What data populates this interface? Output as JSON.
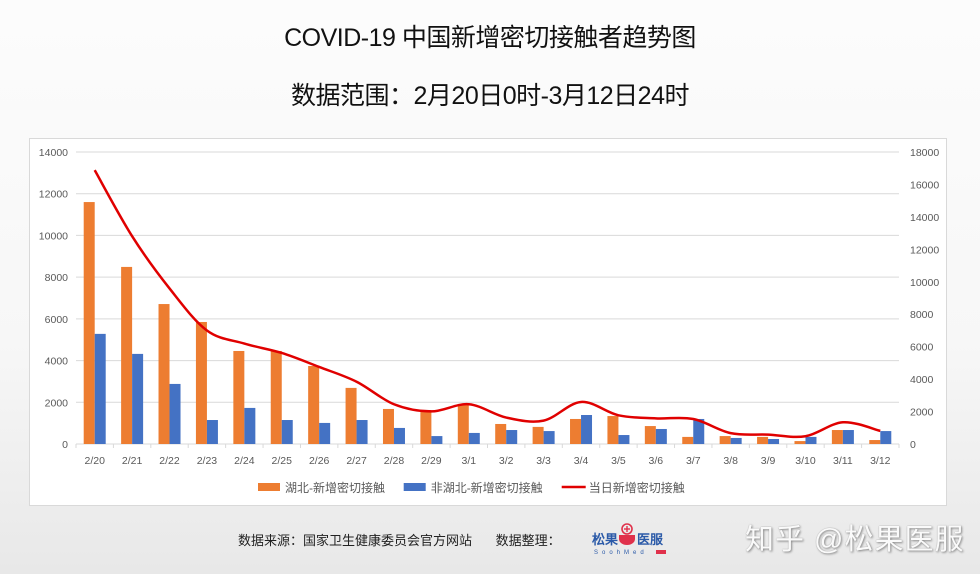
{
  "header": {
    "title": "COVID-19 中国新增密切接触者趋势图",
    "subtitle": "数据范围：2月20日0时-3月12日24时"
  },
  "footer": {
    "source": "数据来源：国家卫生健康委员会官方网站",
    "compiled_by": "数据整理：",
    "logo_text": "松果医服",
    "logo_subtext": "SoohMed",
    "watermark": "知乎 @松果医服"
  },
  "colors": {
    "hubei": "#ED7D31",
    "non_hubei": "#4472C4",
    "total": "#E00000",
    "grid": "#d9d9d9",
    "axis_text": "#595959"
  },
  "chart_data": {
    "type": "bar",
    "title": "COVID-19 中国新增密切接触者趋势图",
    "subtitle": "数据范围：2月20日0时-3月12日24时",
    "xlabel": "",
    "ylabel": "",
    "categories": [
      "2/20",
      "2/21",
      "2/22",
      "2/23",
      "2/24",
      "2/25",
      "2/26",
      "2/27",
      "2/28",
      "2/29",
      "3/1",
      "3/2",
      "3/3",
      "3/4",
      "3/5",
      "3/6",
      "3/7",
      "3/8",
      "3/9",
      "3/10",
      "3/11",
      "3/12"
    ],
    "series": [
      {
        "name": "湖北-新增密切接触",
        "type": "bar",
        "axis": "left",
        "values": [
          11600,
          8490,
          6710,
          5850,
          4460,
          4460,
          3740,
          2690,
          1680,
          1630,
          1920,
          960,
          820,
          1200,
          1340,
          860,
          340,
          380,
          340,
          140,
          670,
          190
        ]
      },
      {
        "name": "非湖北-新增密切接触",
        "type": "bar",
        "axis": "left",
        "values": [
          5280,
          4320,
          2880,
          1150,
          1730,
          1150,
          1010,
          1150,
          770,
          380,
          530,
          670,
          620,
          1390,
          430,
          720,
          1200,
          290,
          240,
          340,
          670,
          620
        ]
      },
      {
        "name": "当日新增密切接触",
        "type": "line",
        "axis": "right",
        "smooth": true,
        "values": [
          16880,
          12810,
          9590,
          7000,
          6190,
          5610,
          4750,
          3840,
          2450,
          2010,
          2450,
          1630,
          1440,
          2590,
          1770,
          1580,
          1540,
          670,
          580,
          480,
          1340,
          810
        ]
      }
    ],
    "ylim": [
      0,
      14000
    ],
    "y_ticks": [
      0,
      2000,
      4000,
      6000,
      8000,
      10000,
      12000,
      14000
    ],
    "y2lim": [
      0,
      18000
    ],
    "y2_ticks": [
      0,
      2000,
      4000,
      6000,
      8000,
      10000,
      12000,
      14000,
      16000,
      18000
    ],
    "grid": true,
    "legend_position": "bottom"
  }
}
